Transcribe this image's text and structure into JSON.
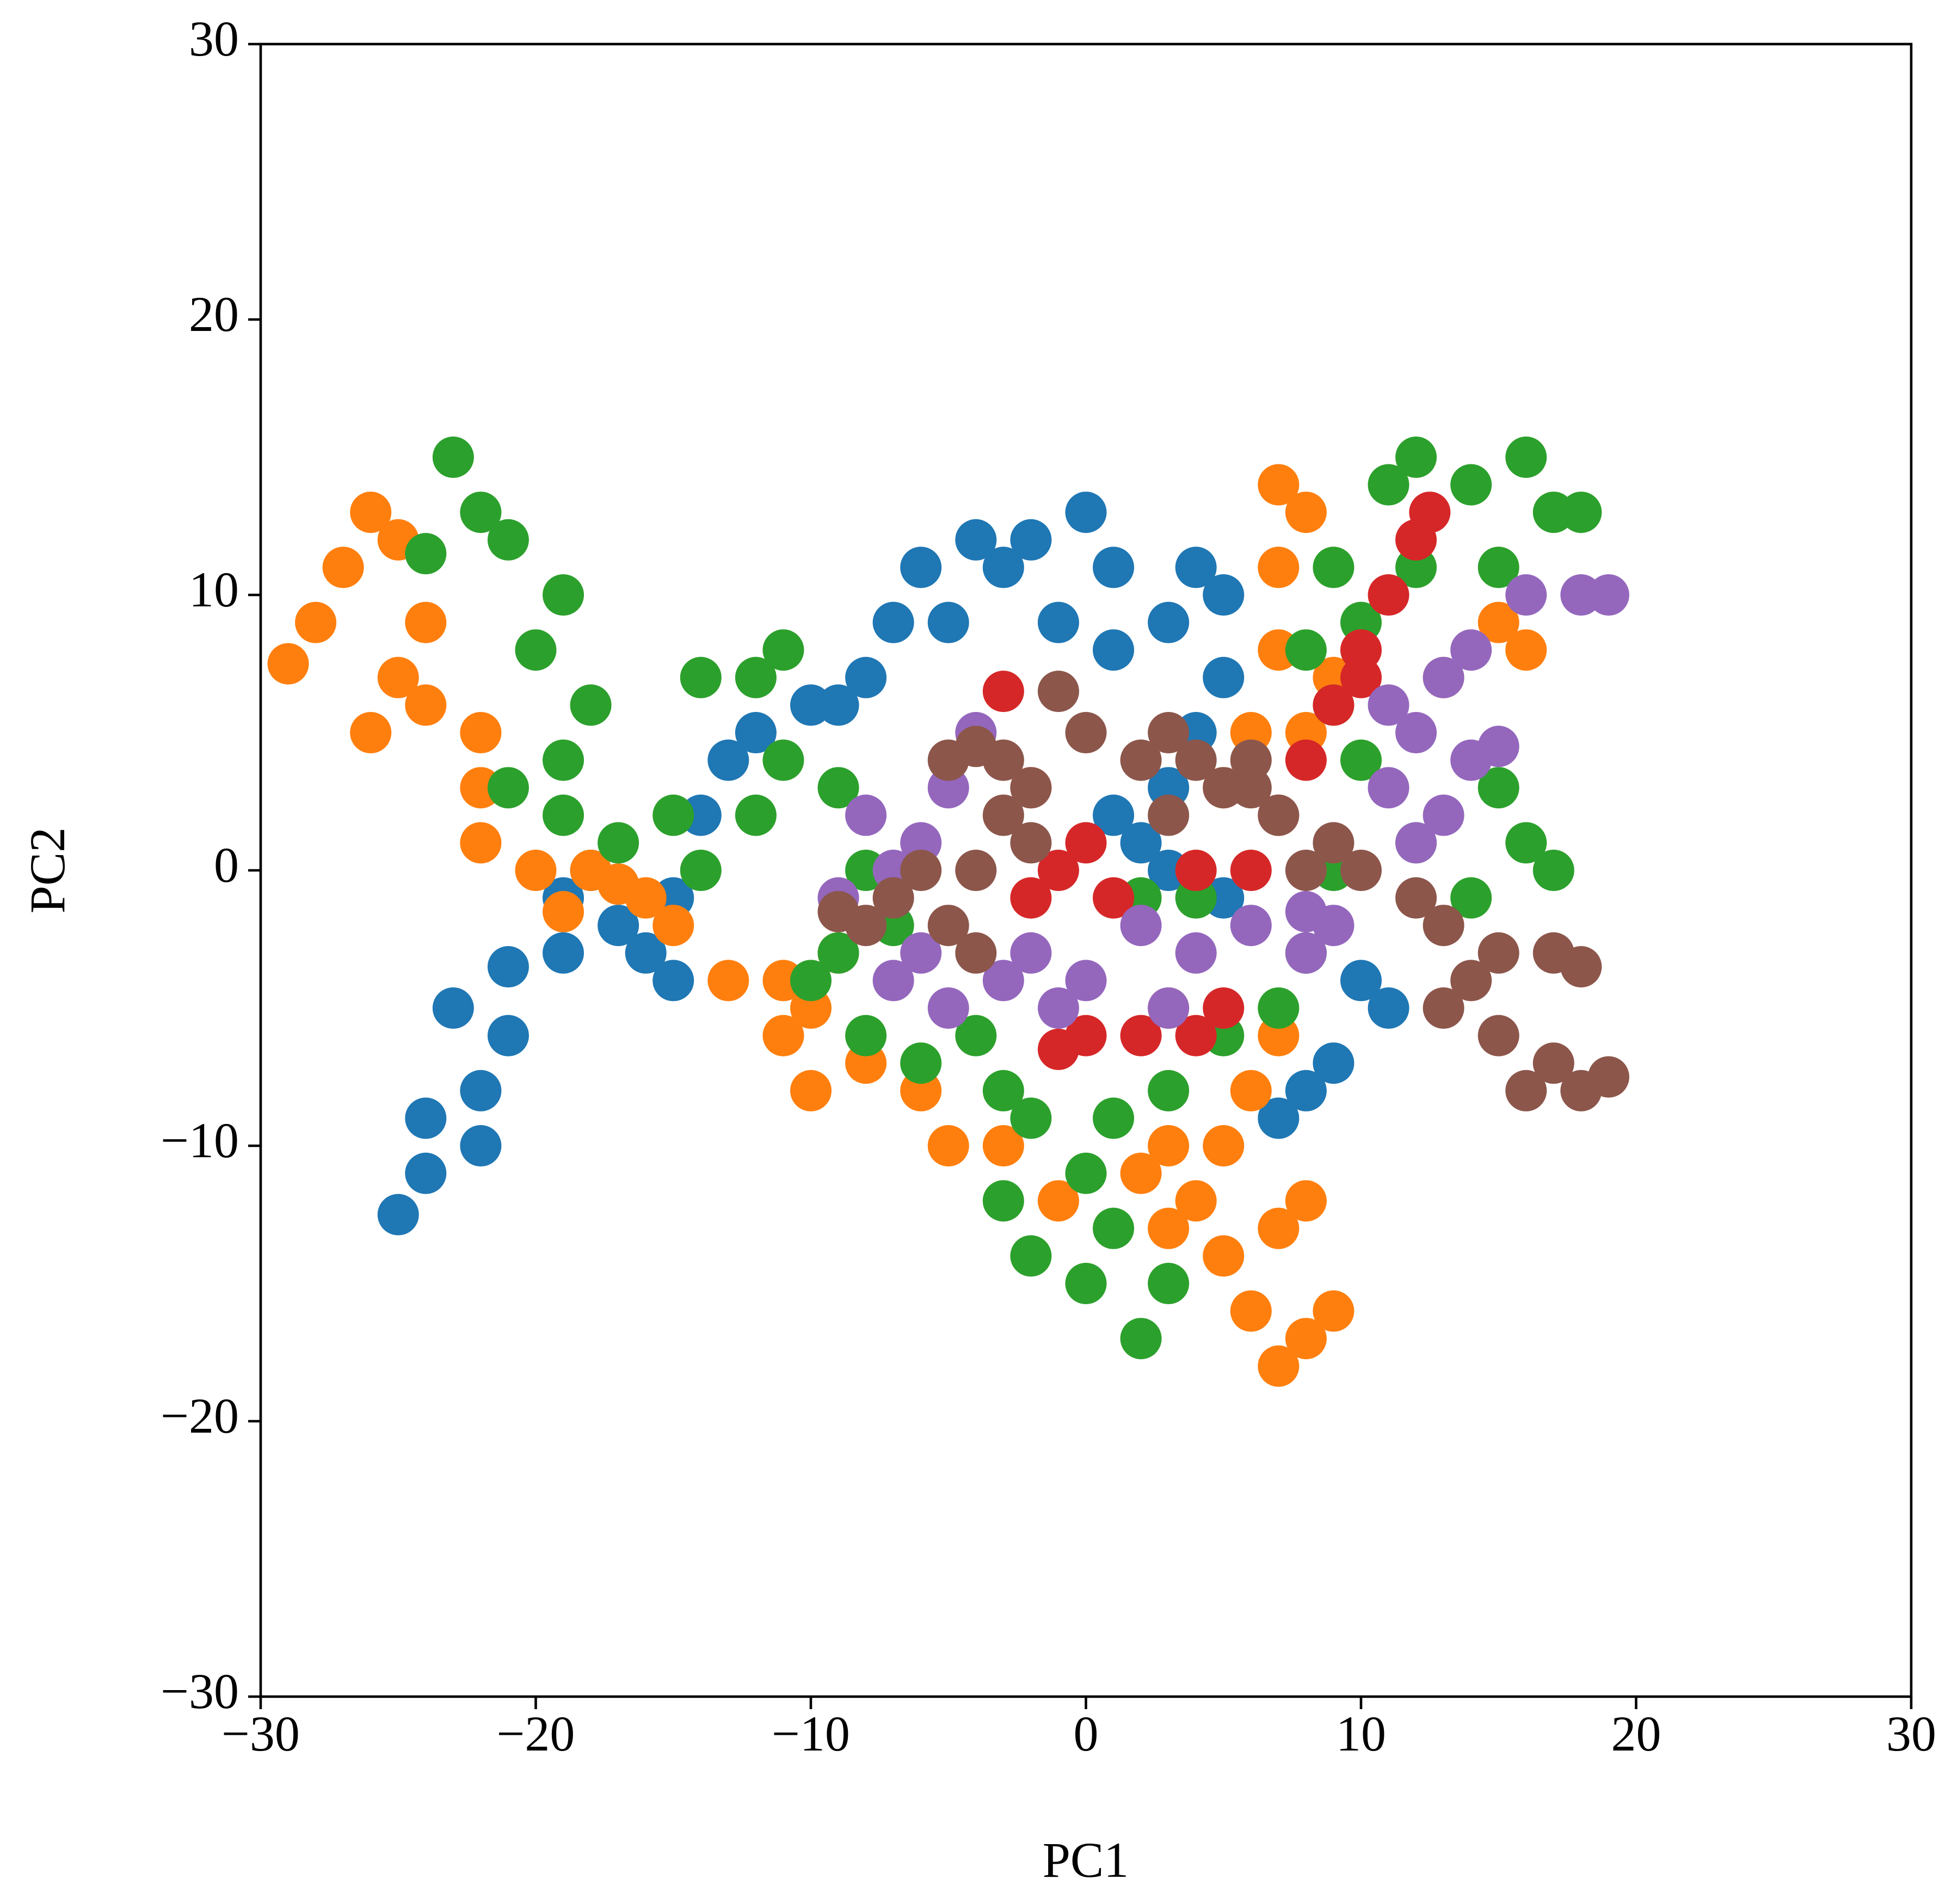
{
  "chart_data": {
    "type": "scatter",
    "xlabel": "PC1",
    "ylabel": "PC2",
    "xlim": [
      -30,
      30
    ],
    "ylim": [
      -30,
      30
    ],
    "xticks": [
      {
        "value": -30,
        "label": "−30"
      },
      {
        "value": -20,
        "label": "−20"
      },
      {
        "value": -10,
        "label": "−10"
      },
      0,
      10,
      20,
      30
    ],
    "yticks": [
      {
        "value": -30,
        "label": "−30"
      },
      {
        "value": -20,
        "label": "−20"
      },
      {
        "value": -10,
        "label": "−10"
      },
      0,
      10,
      20,
      30
    ],
    "series": [
      {
        "color": "#1f77b4",
        "x": [
          -25,
          -24,
          -22,
          -21,
          -23,
          -21,
          -19,
          -19,
          -18,
          -17,
          -16,
          -15,
          -15,
          -14,
          -13,
          -12,
          -10,
          -8,
          -7,
          -6,
          -4,
          -2,
          0,
          1,
          -1,
          1,
          3,
          4,
          5,
          5,
          4,
          3,
          1,
          2,
          3,
          5,
          8,
          10,
          11,
          9,
          8,
          7,
          -3,
          -5,
          -9,
          -24,
          -22
        ],
        "values": [
          -12.5,
          -9,
          -8,
          -6,
          -5,
          -3.5,
          -3,
          -1,
          0,
          -2,
          -3,
          -4,
          -1,
          2,
          4,
          5,
          6,
          7,
          9,
          11,
          12,
          12,
          13,
          11,
          9,
          8,
          9,
          11,
          10,
          7,
          5,
          3,
          2,
          1,
          0,
          -1,
          -3,
          -4,
          -5,
          -7,
          -8,
          -9,
          11,
          9,
          6,
          -11,
          -10
        ]
      },
      {
        "color": "#ff7f0e",
        "x": [
          -29,
          -28,
          -27,
          -26,
          -25,
          -24,
          -25,
          -26,
          -24,
          -22,
          -22,
          -22,
          -20,
          -18,
          -16,
          -15,
          -13,
          -11,
          -10,
          -9,
          -11,
          -10,
          -8,
          -6,
          -5,
          -3,
          -1,
          2,
          3,
          4,
          5,
          6,
          7,
          8,
          9,
          7,
          5,
          6,
          7,
          8,
          3,
          6,
          5,
          8,
          7,
          7,
          7,
          8,
          9,
          13,
          15,
          16,
          -19,
          -17
        ],
        "values": [
          7.5,
          9,
          11,
          13,
          12,
          9,
          7,
          5,
          6,
          5,
          3,
          1,
          0,
          0,
          -1,
          -2,
          -4,
          -4,
          -5,
          -3,
          -6,
          -8,
          -7,
          -8,
          -10,
          -10,
          -12,
          -11,
          -13,
          -12,
          -14,
          -16,
          -18,
          -17,
          -16,
          -13,
          -10,
          -8,
          -6,
          -12,
          -10,
          5,
          3,
          5,
          8,
          11,
          14,
          13,
          7,
          7,
          9,
          8,
          -1.5,
          -0.5
        ]
      },
      {
        "color": "#2ca02c",
        "x": [
          -23,
          -22,
          -24,
          -21,
          -19,
          -20,
          -18,
          -19,
          -21,
          -19,
          -17,
          -15,
          -14,
          -12,
          -11,
          -12,
          -11,
          -14,
          -9,
          -8,
          -7,
          -9,
          -10,
          -8,
          -6,
          -4,
          -3,
          -2,
          0,
          1,
          0,
          2,
          3,
          -2,
          -3,
          1,
          3,
          5,
          7,
          8,
          2,
          4,
          9,
          12,
          14,
          16,
          17,
          15,
          10,
          9,
          8,
          9,
          11,
          12,
          14,
          16,
          17,
          18,
          15,
          12,
          10
        ],
        "values": [
          15,
          13,
          11.5,
          12,
          10,
          8,
          6,
          4,
          3,
          2,
          1,
          2,
          0,
          2,
          4,
          7,
          8,
          7,
          3,
          0,
          -2,
          -3,
          -4,
          -6,
          -7,
          -6,
          -8,
          -9,
          -11,
          -13,
          -15,
          -17,
          -15,
          -14,
          -12,
          -9,
          -8,
          -6,
          -5,
          -3,
          -1,
          -1,
          0,
          1,
          -1,
          1,
          0,
          3,
          4,
          6,
          8,
          11,
          14,
          15,
          14,
          15,
          13,
          13,
          11,
          11,
          9
        ]
      },
      {
        "color": "#d62728",
        "x": [
          -3,
          -2,
          -1,
          0,
          1,
          3,
          4,
          5,
          0,
          -1,
          2,
          7,
          8,
          9,
          10,
          11,
          12,
          12.5,
          10,
          6,
          4,
          -2
        ],
        "values": [
          6.5,
          3,
          0,
          1,
          -1,
          -5,
          -6,
          -5,
          -6,
          -6.5,
          -6,
          2,
          4,
          6,
          8,
          10,
          12,
          13,
          7,
          0,
          0,
          -1
        ]
      },
      {
        "color": "#9467bd",
        "x": [
          -8,
          -7,
          -6,
          -5,
          -4,
          -6,
          -5,
          -3,
          -2,
          0,
          2,
          4,
          6,
          8,
          9,
          3,
          -1,
          11,
          12,
          11,
          13,
          14,
          16,
          18,
          19,
          12,
          14,
          15,
          13,
          8,
          -7,
          -9
        ],
        "values": [
          2,
          0,
          1,
          3,
          5,
          -3,
          -5,
          -4,
          -3,
          -4,
          -2,
          -3,
          -2,
          -1.5,
          -2,
          -5,
          -5,
          3,
          5,
          6,
          7,
          8,
          10,
          10,
          10,
          1,
          4,
          4.5,
          2,
          -3,
          -4,
          -1
        ]
      },
      {
        "color": "#8c564b",
        "x": [
          -9,
          -8,
          -7,
          -6,
          -5,
          -4,
          -4,
          -3,
          -2,
          -3,
          -5,
          -4,
          -1,
          0,
          2,
          3,
          4,
          5,
          3,
          6,
          7,
          9,
          10,
          12,
          13,
          15,
          17,
          18,
          14,
          13,
          15,
          17,
          19,
          18,
          16,
          6,
          8,
          -2
        ],
        "values": [
          -1.5,
          -2,
          -1,
          0,
          -2,
          -3,
          0,
          2,
          3,
          4,
          4,
          4.5,
          6.5,
          5,
          4,
          5,
          4,
          3,
          2,
          3,
          2,
          1,
          0,
          -1,
          -2,
          -3,
          -3,
          -3.5,
          -4,
          -5,
          -6,
          -7,
          -7.5,
          -8,
          -8,
          4,
          0,
          1
        ]
      }
    ]
  }
}
